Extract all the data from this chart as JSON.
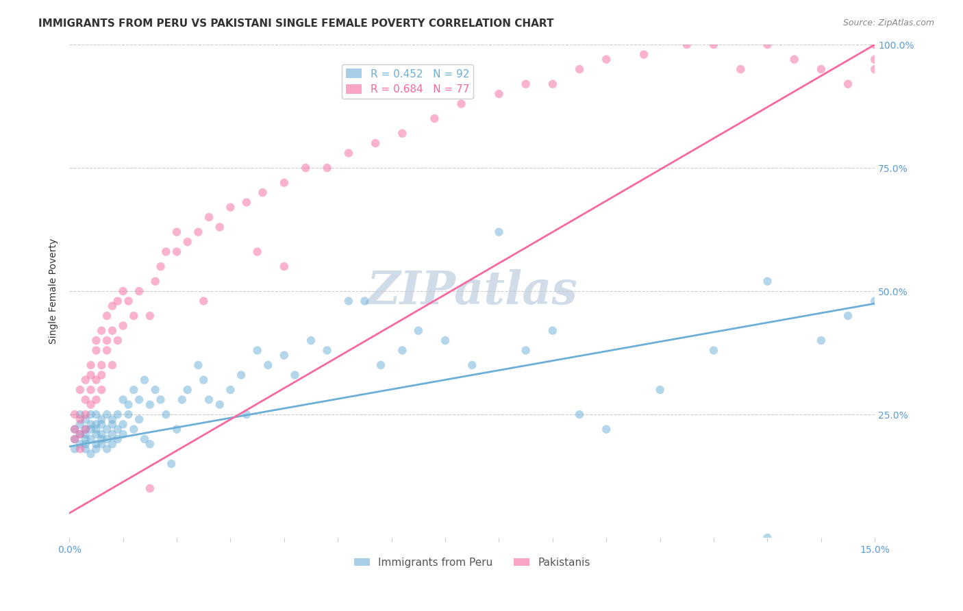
{
  "title": "IMMIGRANTS FROM PERU VS PAKISTANI SINGLE FEMALE POVERTY CORRELATION CHART",
  "source": "Source: ZipAtlas.com",
  "xlabel_bottom": "",
  "ylabel": "Single Female Poverty",
  "xmin": 0.0,
  "xmax": 0.15,
  "ymin": 0.0,
  "ymax": 1.0,
  "yticks": [
    0.0,
    0.25,
    0.5,
    0.75,
    1.0
  ],
  "ytick_labels": [
    "",
    "25.0%",
    "50.0%",
    "75.0%",
    "100.0%"
  ],
  "xtick_labels": [
    "0.0%",
    "",
    "",
    "",
    "",
    "",
    "",
    "",
    "",
    "",
    "",
    "",
    "",
    "",
    "",
    "15.0%"
  ],
  "legend_entries": [
    {
      "label": "R = 0.452   N = 92",
      "color": "#6baed6"
    },
    {
      "label": "R = 0.684   N = 77",
      "color": "#f768a1"
    }
  ],
  "legend_labels": [
    "Immigrants from Peru",
    "Pakistanis"
  ],
  "blue_color": "#6baed6",
  "pink_color": "#f768a1",
  "watermark": "ZIPatlas",
  "watermark_color": "#d0dce8",
  "blue_scatter_x": [
    0.001,
    0.001,
    0.001,
    0.002,
    0.002,
    0.002,
    0.002,
    0.003,
    0.003,
    0.003,
    0.003,
    0.003,
    0.003,
    0.004,
    0.004,
    0.004,
    0.004,
    0.004,
    0.005,
    0.005,
    0.005,
    0.005,
    0.005,
    0.005,
    0.006,
    0.006,
    0.006,
    0.006,
    0.006,
    0.007,
    0.007,
    0.007,
    0.007,
    0.008,
    0.008,
    0.008,
    0.008,
    0.009,
    0.009,
    0.009,
    0.01,
    0.01,
    0.01,
    0.011,
    0.011,
    0.012,
    0.012,
    0.013,
    0.013,
    0.014,
    0.014,
    0.015,
    0.015,
    0.016,
    0.017,
    0.018,
    0.019,
    0.02,
    0.021,
    0.022,
    0.024,
    0.025,
    0.026,
    0.028,
    0.03,
    0.032,
    0.033,
    0.035,
    0.037,
    0.04,
    0.042,
    0.045,
    0.048,
    0.052,
    0.055,
    0.058,
    0.062,
    0.065,
    0.07,
    0.075,
    0.08,
    0.085,
    0.09,
    0.095,
    0.1,
    0.11,
    0.12,
    0.13,
    0.13,
    0.14,
    0.145,
    0.15
  ],
  "blue_scatter_y": [
    0.2,
    0.22,
    0.18,
    0.21,
    0.19,
    0.23,
    0.25,
    0.2,
    0.22,
    0.18,
    0.24,
    0.21,
    0.19,
    0.23,
    0.25,
    0.2,
    0.22,
    0.17,
    0.21,
    0.23,
    0.19,
    0.25,
    0.18,
    0.22,
    0.2,
    0.24,
    0.21,
    0.19,
    0.23,
    0.22,
    0.2,
    0.18,
    0.25,
    0.21,
    0.23,
    0.19,
    0.24,
    0.22,
    0.2,
    0.25,
    0.23,
    0.21,
    0.28,
    0.25,
    0.27,
    0.3,
    0.22,
    0.28,
    0.24,
    0.32,
    0.2,
    0.27,
    0.19,
    0.3,
    0.28,
    0.25,
    0.15,
    0.22,
    0.28,
    0.3,
    0.35,
    0.32,
    0.28,
    0.27,
    0.3,
    0.33,
    0.25,
    0.38,
    0.35,
    0.37,
    0.33,
    0.4,
    0.38,
    0.48,
    0.48,
    0.35,
    0.38,
    0.42,
    0.4,
    0.35,
    0.62,
    0.38,
    0.42,
    0.25,
    0.22,
    0.3,
    0.38,
    0.52,
    0.0,
    0.4,
    0.45,
    0.48
  ],
  "pink_scatter_x": [
    0.001,
    0.001,
    0.001,
    0.002,
    0.002,
    0.002,
    0.002,
    0.003,
    0.003,
    0.003,
    0.003,
    0.004,
    0.004,
    0.004,
    0.004,
    0.005,
    0.005,
    0.005,
    0.005,
    0.006,
    0.006,
    0.006,
    0.006,
    0.007,
    0.007,
    0.007,
    0.008,
    0.008,
    0.008,
    0.009,
    0.009,
    0.01,
    0.01,
    0.011,
    0.012,
    0.013,
    0.015,
    0.016,
    0.017,
    0.018,
    0.02,
    0.022,
    0.024,
    0.026,
    0.028,
    0.03,
    0.033,
    0.036,
    0.04,
    0.044,
    0.048,
    0.052,
    0.057,
    0.062,
    0.068,
    0.073,
    0.08,
    0.085,
    0.09,
    0.095,
    0.1,
    0.107,
    0.115,
    0.12,
    0.125,
    0.13,
    0.135,
    0.14,
    0.145,
    0.15,
    0.15,
    0.15,
    0.035,
    0.04,
    0.025,
    0.02,
    0.015
  ],
  "pink_scatter_y": [
    0.2,
    0.22,
    0.25,
    0.21,
    0.24,
    0.18,
    0.3,
    0.22,
    0.25,
    0.28,
    0.32,
    0.3,
    0.33,
    0.27,
    0.35,
    0.28,
    0.32,
    0.38,
    0.4,
    0.33,
    0.35,
    0.42,
    0.3,
    0.38,
    0.45,
    0.4,
    0.35,
    0.42,
    0.47,
    0.4,
    0.48,
    0.43,
    0.5,
    0.48,
    0.45,
    0.5,
    0.45,
    0.52,
    0.55,
    0.58,
    0.58,
    0.6,
    0.62,
    0.65,
    0.63,
    0.67,
    0.68,
    0.7,
    0.72,
    0.75,
    0.75,
    0.78,
    0.8,
    0.82,
    0.85,
    0.88,
    0.9,
    0.92,
    0.92,
    0.95,
    0.97,
    0.98,
    1.0,
    1.0,
    0.95,
    1.0,
    0.97,
    0.95,
    0.92,
    0.95,
    1.0,
    0.97,
    0.58,
    0.55,
    0.48,
    0.62,
    0.1
  ],
  "blue_line_x": [
    0.0,
    0.15
  ],
  "blue_line_y": [
    0.185,
    0.475
  ],
  "pink_line_x": [
    0.0,
    0.15
  ],
  "pink_line_y": [
    0.05,
    1.0
  ],
  "title_fontsize": 11,
  "source_fontsize": 9,
  "axis_label_fontsize": 10,
  "tick_fontsize": 10,
  "legend_fontsize": 11,
  "watermark_fontsize": 48
}
